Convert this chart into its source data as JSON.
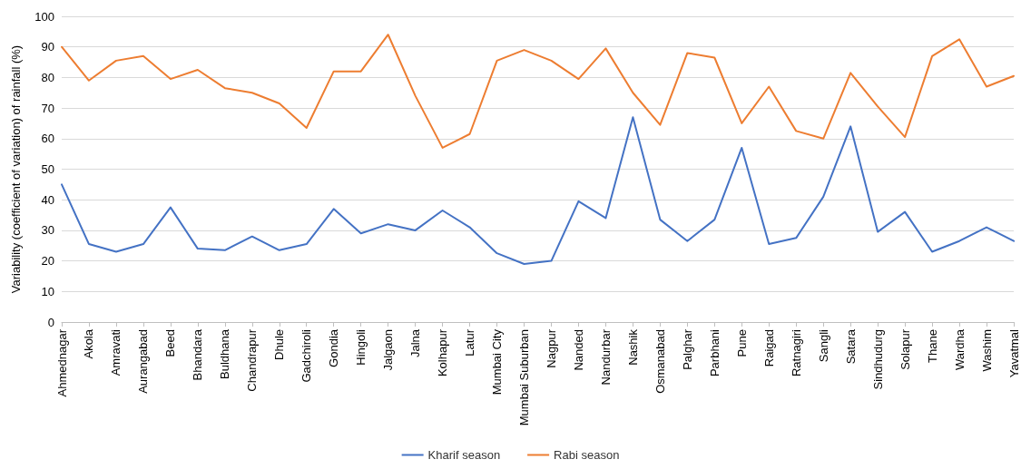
{
  "chart_data": {
    "type": "line",
    "ylabel": "Variability (coefficient of variation) of rainfall (%)",
    "categories": [
      "Ahmednagar",
      "Akola",
      "Amravati",
      "Aurangabad",
      "Beed",
      "Bhandara",
      "Buldhana",
      "Chandrapur",
      "Dhule",
      "Gadchiroli",
      "Gondia",
      "Hingoli",
      "Jalgaon",
      "Jalna",
      "Kolhapur",
      "Latur",
      "Mumbai City",
      "Mumbai Suburban",
      "Nagpur",
      "Nanded",
      "Nandurbar",
      "Nashik",
      "Osmanabad",
      "Palghar",
      "Parbhani",
      "Pune",
      "Raigad",
      "Ratnagiri",
      "Sangli",
      "Satara",
      "Sindhudurg",
      "Solapur",
      "Thane",
      "Wardha",
      "Washim",
      "Yavatmal"
    ],
    "series": [
      {
        "name": "Kharif season",
        "color": "#4472c4",
        "values": [
          45,
          25.5,
          23,
          25.5,
          37.5,
          24,
          23.5,
          28,
          23.5,
          25.5,
          37,
          29,
          32,
          30,
          36.5,
          31,
          22.5,
          19,
          20,
          39.5,
          34,
          67,
          33.5,
          26.5,
          33.5,
          57,
          25.5,
          27.5,
          41,
          64,
          29.5,
          36,
          23,
          26.5,
          31,
          26.5
        ]
      },
      {
        "name": "Rabi season",
        "color": "#ed7d31",
        "values": [
          90,
          79,
          85.5,
          87,
          79.5,
          82.5,
          76.5,
          75,
          71.5,
          63.5,
          82,
          82,
          94,
          74,
          57,
          61.5,
          85.5,
          89,
          85.5,
          79.5,
          89.5,
          75,
          64.5,
          88,
          86.5,
          65,
          77,
          62.5,
          60,
          81.5,
          70.5,
          60.5,
          87,
          92.5,
          77,
          80.5
        ]
      }
    ],
    "ylim": [
      0,
      100
    ],
    "yticks": [
      0,
      10,
      20,
      30,
      40,
      50,
      60,
      70,
      80,
      90,
      100
    ],
    "grid": "y",
    "legend": "bottom",
    "marker": "none",
    "line_style": "solid"
  }
}
